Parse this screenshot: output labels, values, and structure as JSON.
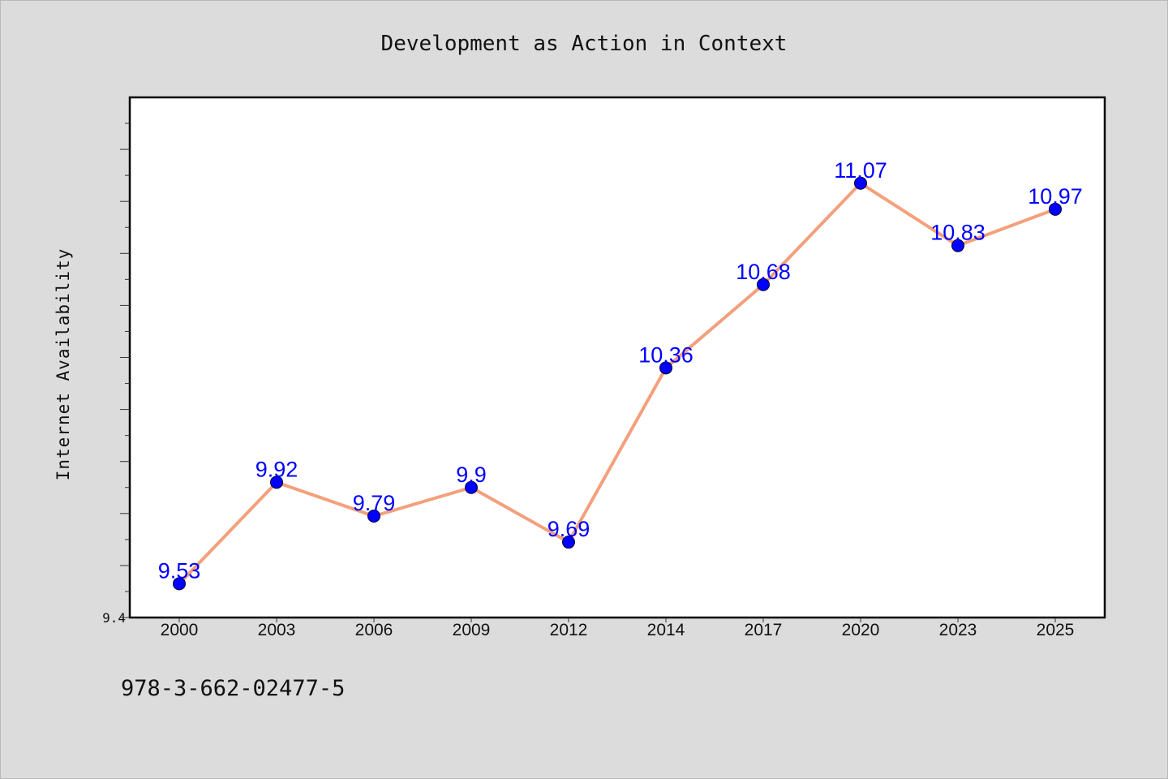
{
  "chart_data": {
    "type": "line",
    "title": "Development as Action in Context",
    "xlabel": "",
    "ylabel": "Internet Availability",
    "categories": [
      "2000",
      "2003",
      "2006",
      "2009",
      "2012",
      "2014",
      "2017",
      "2020",
      "2023",
      "2025"
    ],
    "values": [
      9.53,
      9.92,
      9.79,
      9.9,
      9.69,
      10.36,
      10.68,
      11.07,
      10.83,
      10.97
    ],
    "data_labels": [
      "9.53",
      "9.92",
      "9.79",
      "9.9",
      "9.69",
      "10.36",
      "10.68",
      "11.07",
      "10.83",
      "10.97"
    ],
    "ylim": [
      9.4,
      11.4
    ],
    "y_tick_labels": [
      "9.4"
    ],
    "grid": false,
    "legend": "none",
    "colors": {
      "line": "#f4a07c",
      "marker": "#0000ff",
      "label": "#0000ff",
      "plot_background": "#ffffff",
      "page_background": "#dcdcdc"
    }
  },
  "footnote": "978-3-662-02477-5"
}
